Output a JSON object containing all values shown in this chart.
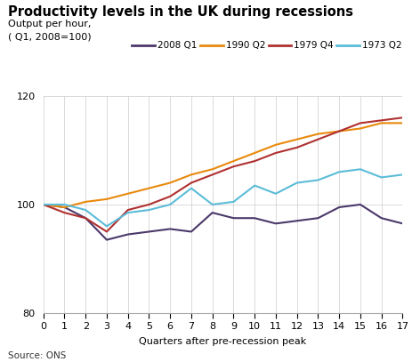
{
  "title": "Productivity levels in the UK during recessions",
  "ylabel_line1": "Output per hour,",
  "ylabel_line2": "( Q1, 2008=100)",
  "xlabel": "Quarters after pre-recession peak",
  "source": "Source: ONS",
  "xlim": [
    0,
    17
  ],
  "ylim": [
    80,
    120
  ],
  "yticks": [
    80,
    100,
    120
  ],
  "xticks": [
    0,
    1,
    2,
    3,
    4,
    5,
    6,
    7,
    8,
    9,
    10,
    11,
    12,
    13,
    14,
    15,
    16,
    17
  ],
  "series": {
    "2008 Q1": {
      "color": "#4b3869",
      "data": [
        100,
        99.5,
        97.5,
        93.5,
        94.5,
        95,
        95.5,
        95,
        98.5,
        97.5,
        97.5,
        96.5,
        97,
        97.5,
        99.5,
        100,
        97.5,
        96.5
      ]
    },
    "1990 Q2": {
      "color": "#e8890c",
      "data": [
        100,
        99.5,
        100.5,
        101,
        102,
        103,
        104,
        105.5,
        106.5,
        108,
        109.5,
        111,
        112,
        113,
        113.5,
        114,
        115,
        115
      ]
    },
    "1979 Q4": {
      "color": "#b03030",
      "data": [
        100,
        98.5,
        97.5,
        95,
        99,
        100,
        101.5,
        104,
        105.5,
        107,
        108,
        109.5,
        110.5,
        112,
        113.5,
        115,
        115.5,
        116
      ]
    },
    "1973 Q2": {
      "color": "#5bbcd8",
      "data": [
        100,
        100,
        99,
        96,
        98.5,
        99,
        100,
        103,
        100,
        100.5,
        103.5,
        102,
        104,
        104.5,
        106,
        106.5,
        105,
        105.5
      ]
    }
  },
  "legend_order": [
    "2008 Q1",
    "1990 Q2",
    "1979 Q4",
    "1973 Q2"
  ],
  "background_color": "#ffffff",
  "grid_color": "#cccccc"
}
